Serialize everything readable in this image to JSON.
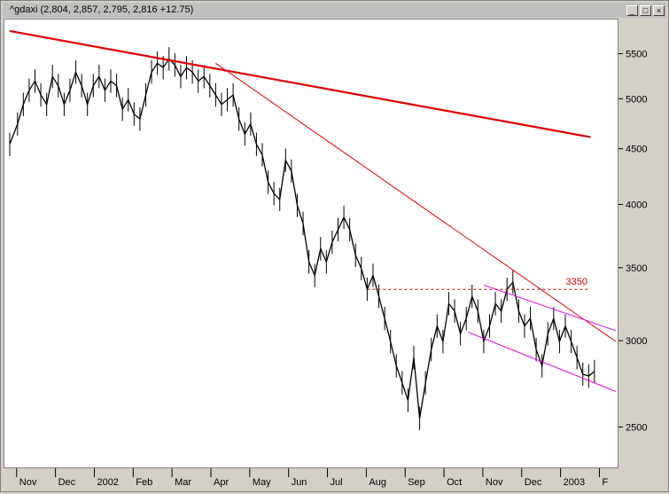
{
  "window": {
    "title": "^gdaxi (2,804, 2,857, 2,795, 2,816 +12.75)",
    "buttons": [
      "minimize",
      "maximize",
      "close"
    ]
  },
  "annotations": {
    "resistance_label": "3350"
  },
  "colors": {
    "price": "#000000",
    "long_trendline": "#e00000",
    "thin_trendline": "#e00000",
    "channel": "#e000e0",
    "resistance": "#cc0000",
    "annotation_text": "#dd0000"
  },
  "chart_data": {
    "type": "line",
    "scale": "log",
    "ylim": [
      2300,
      5900
    ],
    "y_ticks": [
      2500,
      3000,
      3500,
      4000,
      4500,
      5000,
      5500
    ],
    "x_ticks": [
      "Nov",
      "Dec",
      "2002",
      "Feb",
      "Mar",
      "Apr",
      "May",
      "Jun",
      "Jul",
      "Aug",
      "Sep",
      "Oct",
      "Nov",
      "Dec",
      "2003",
      "F"
    ],
    "x_tick_months": [
      0,
      1,
      2,
      3,
      4,
      5,
      6,
      7,
      8,
      9,
      10,
      11,
      12,
      13,
      14,
      15
    ],
    "xlim": [
      -0.2,
      15.4
    ],
    "series": [
      {
        "values_note": "",
        "x": [
          -0.2,
          0.0,
          0.15,
          0.3,
          0.45,
          0.6,
          0.75,
          0.9,
          1.05,
          1.2,
          1.35,
          1.5,
          1.65,
          1.8,
          1.95,
          2.1,
          2.25,
          2.4,
          2.55,
          2.7,
          2.85,
          3.0,
          3.15,
          3.3,
          3.45,
          3.6,
          3.75,
          3.9,
          4.05,
          4.2,
          4.35,
          4.5,
          4.65,
          4.8,
          4.95,
          5.1,
          5.25,
          5.4,
          5.55,
          5.7,
          5.85,
          6.0,
          6.15,
          6.3,
          6.45,
          6.6,
          6.75,
          6.9,
          7.05,
          7.2,
          7.35,
          7.5,
          7.65,
          7.8,
          7.95,
          8.1,
          8.25,
          8.4,
          8.55,
          8.7,
          8.85,
          9.0,
          9.15,
          9.3,
          9.45,
          9.6,
          9.75,
          9.9,
          10.05,
          10.2,
          10.35,
          10.5,
          10.65,
          10.8,
          10.95,
          11.1,
          11.25,
          11.4,
          11.55,
          11.7,
          11.85,
          12.0,
          12.15,
          12.3,
          12.45,
          12.6,
          12.75,
          12.9,
          13.05,
          13.2,
          13.35,
          13.5,
          13.65,
          13.8,
          13.95,
          14.1,
          14.25,
          14.4,
          14.55,
          14.7,
          14.85
        ],
        "values": [
          4550,
          4750,
          4950,
          5100,
          5200,
          5050,
          4950,
          5250,
          5150,
          4950,
          5100,
          5300,
          5150,
          4950,
          5150,
          5250,
          5100,
          5200,
          5150,
          4900,
          5000,
          4850,
          4800,
          5050,
          5300,
          5400,
          5350,
          5450,
          5380,
          5250,
          5350,
          5300,
          5200,
          5250,
          5150,
          5050,
          4950,
          5000,
          5050,
          4800,
          4650,
          4750,
          4550,
          4450,
          4200,
          4100,
          4050,
          4400,
          4300,
          4000,
          3850,
          3550,
          3450,
          3650,
          3550,
          3700,
          3800,
          3900,
          3800,
          3600,
          3500,
          3350,
          3450,
          3300,
          3150,
          3000,
          2850,
          2750,
          2650,
          2900,
          2550,
          2750,
          2950,
          3100,
          3000,
          3250,
          3200,
          3050,
          3150,
          3300,
          3200,
          3000,
          3100,
          3250,
          3200,
          3350,
          3400,
          3200,
          3100,
          3150,
          2950,
          2850,
          3050,
          3150,
          3000,
          3100,
          3000,
          2900,
          2800,
          2790,
          2816
        ]
      }
    ],
    "trendlines": [
      {
        "name": "",
        "x": [
          -0.2,
          14.75
        ],
        "y": [
          5780,
          4620
        ]
      },
      {
        "name": "",
        "x": [
          5.1,
          15.4
        ],
        "y": [
          5400,
          3000
        ]
      },
      {
        "name": "",
        "x": [
          12.0,
          15.4
        ],
        "y": [
          3380,
          3070
        ]
      },
      {
        "name": "",
        "x": [
          11.6,
          15.4
        ],
        "y": [
          3060,
          2700
        ]
      }
    ],
    "hlines": [
      {
        "y": 3350,
        "x": [
          9.0,
          14.75
        ],
        "style": "dashed",
        "label": "3350"
      }
    ],
    "grid": false,
    "legend": "none"
  }
}
